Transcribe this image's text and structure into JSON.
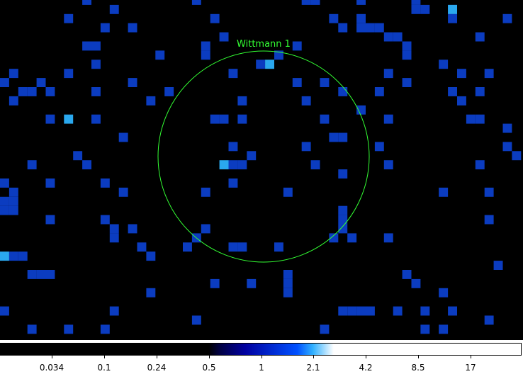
{
  "image": {
    "description_colors": {
      "background": "#000000",
      "pixel_low": "#0b3cc0",
      "pixel_high": "#2aa8ee",
      "region": "#33ff33"
    }
  },
  "region": {
    "label": "Wittmann 1",
    "shape": "circle",
    "color": "#33ff33"
  },
  "colorbar": {
    "scale": "log",
    "ticks": [
      "0.034",
      "0.1",
      "0.24",
      "0.5",
      "1",
      "2.1",
      "4.2",
      "8.5",
      "17"
    ],
    "gradient_stops": [
      "#000000",
      "#000000",
      "#000040",
      "#0000a0",
      "#0050ff",
      "#30b0ff",
      "#ffffff",
      "#ffffff"
    ]
  }
}
